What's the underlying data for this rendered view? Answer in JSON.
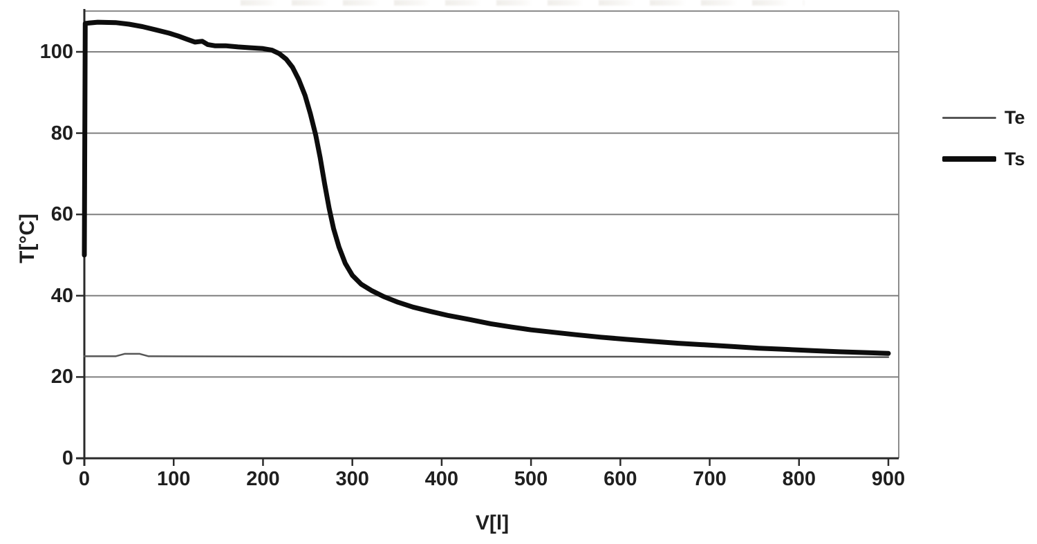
{
  "chart_data": {
    "type": "line",
    "title": "",
    "xlabel": "V[l]",
    "ylabel": "T[°C]",
    "x_ticks": [
      0,
      100,
      200,
      300,
      400,
      500,
      600,
      700,
      800,
      900
    ],
    "y_ticks": [
      0,
      20,
      40,
      60,
      80,
      100
    ],
    "xlim": [
      0,
      910
    ],
    "ylim": [
      0,
      110
    ],
    "grid": "horizontal-gridlines",
    "legend_position": "right-outside",
    "colors": {
      "background": "#ffffff",
      "axis": "#2a2a2a",
      "gridline": "#7f7f7f",
      "frame": "#8c8c8c",
      "text": "#1f1f1f"
    },
    "series": [
      {
        "name": "Te",
        "color": "#565656",
        "stroke_width": 2.5,
        "legend_sample_height": 3,
        "points": [
          [
            0,
            25.1
          ],
          [
            35,
            25.1
          ],
          [
            45,
            25.7
          ],
          [
            62,
            25.7
          ],
          [
            72,
            25.1
          ],
          [
            300,
            25.0
          ],
          [
            600,
            25.0
          ],
          [
            900,
            24.9
          ]
        ]
      },
      {
        "name": "Ts",
        "color": "#0d0d0d",
        "stroke_width": 7,
        "legend_sample_height": 8,
        "points": [
          [
            0,
            50
          ],
          [
            1,
            107
          ],
          [
            15,
            107.3
          ],
          [
            35,
            107.2
          ],
          [
            50,
            106.8
          ],
          [
            65,
            106.2
          ],
          [
            80,
            105.4
          ],
          [
            95,
            104.6
          ],
          [
            105,
            103.9
          ],
          [
            115,
            103.1
          ],
          [
            124,
            102.4
          ],
          [
            132,
            102.6
          ],
          [
            138,
            101.8
          ],
          [
            146,
            101.5
          ],
          [
            158,
            101.5
          ],
          [
            172,
            101.2
          ],
          [
            186,
            101.0
          ],
          [
            200,
            100.8
          ],
          [
            210,
            100.4
          ],
          [
            218,
            99.6
          ],
          [
            226,
            98.2
          ],
          [
            233,
            96.2
          ],
          [
            240,
            93.2
          ],
          [
            247,
            89.3
          ],
          [
            253,
            84.8
          ],
          [
            259,
            79.5
          ],
          [
            264,
            74.0
          ],
          [
            269,
            67.5
          ],
          [
            274,
            61.5
          ],
          [
            279,
            56.5
          ],
          [
            285,
            52.0
          ],
          [
            292,
            48.0
          ],
          [
            300,
            45.0
          ],
          [
            310,
            42.8
          ],
          [
            322,
            41.2
          ],
          [
            335,
            39.8
          ],
          [
            351,
            38.4
          ],
          [
            368,
            37.2
          ],
          [
            388,
            36.1
          ],
          [
            408,
            35.1
          ],
          [
            430,
            34.2
          ],
          [
            455,
            33.1
          ],
          [
            478,
            32.3
          ],
          [
            500,
            31.6
          ],
          [
            525,
            31.0
          ],
          [
            550,
            30.4
          ],
          [
            578,
            29.8
          ],
          [
            605,
            29.3
          ],
          [
            635,
            28.8
          ],
          [
            665,
            28.3
          ],
          [
            695,
            27.9
          ],
          [
            725,
            27.5
          ],
          [
            755,
            27.1
          ],
          [
            785,
            26.8
          ],
          [
            815,
            26.5
          ],
          [
            845,
            26.2
          ],
          [
            875,
            26.0
          ],
          [
            900,
            25.8
          ]
        ]
      }
    ]
  }
}
